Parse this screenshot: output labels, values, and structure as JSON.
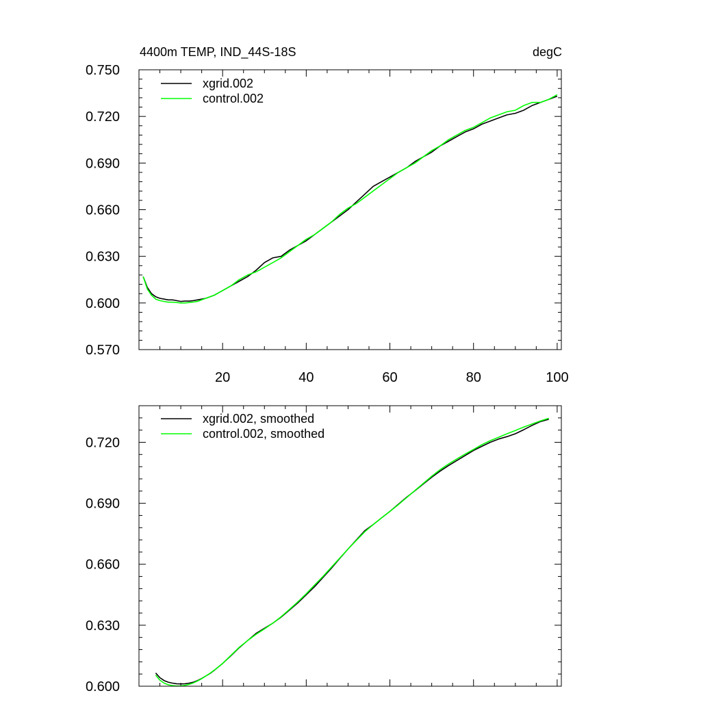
{
  "chart_data": [
    {
      "type": "line",
      "title_left": "4400m TEMP, IND_44S-18S",
      "title_right": "degC",
      "xlabel": "",
      "ylabel": "",
      "xlim": [
        0,
        101
      ],
      "ylim": [
        0.57,
        0.75
      ],
      "xticks": [
        20,
        40,
        60,
        80,
        100
      ],
      "xtick_labels": [
        "20",
        "40",
        "60",
        "80",
        "100"
      ],
      "yticks": [
        0.57,
        0.6,
        0.63,
        0.66,
        0.69,
        0.72,
        0.75
      ],
      "ytick_labels": [
        "0.570",
        "0.600",
        "0.630",
        "0.660",
        "0.690",
        "0.720",
        "0.750"
      ],
      "legend_position": "top-left",
      "series": [
        {
          "name": "xgrid.002",
          "color": "#000000",
          "x": [
            1,
            2,
            3,
            4,
            5,
            6,
            7,
            8,
            9,
            10,
            11,
            12,
            13,
            14,
            15,
            16,
            17,
            18,
            19,
            20,
            22,
            24,
            26,
            28,
            30,
            32,
            34,
            36,
            38,
            40,
            42,
            44,
            46,
            48,
            50,
            52,
            54,
            56,
            58,
            60,
            62,
            64,
            66,
            68,
            70,
            72,
            74,
            76,
            78,
            80,
            82,
            84,
            86,
            88,
            90,
            92,
            94,
            96,
            98,
            100
          ],
          "values": [
            0.617,
            0.61,
            0.606,
            0.604,
            0.603,
            0.6025,
            0.602,
            0.602,
            0.6015,
            0.601,
            0.6012,
            0.6012,
            0.6015,
            0.602,
            0.6025,
            0.603,
            0.604,
            0.605,
            0.6065,
            0.608,
            0.611,
            0.614,
            0.617,
            0.621,
            0.626,
            0.629,
            0.63,
            0.634,
            0.637,
            0.64,
            0.644,
            0.648,
            0.652,
            0.656,
            0.66,
            0.665,
            0.67,
            0.675,
            0.678,
            0.681,
            0.684,
            0.687,
            0.691,
            0.694,
            0.697,
            0.701,
            0.704,
            0.707,
            0.71,
            0.712,
            0.715,
            0.717,
            0.719,
            0.721,
            0.722,
            0.724,
            0.727,
            0.729,
            0.731,
            0.733
          ]
        },
        {
          "name": "control.002",
          "color": "#00ff00",
          "x": [
            1,
            2,
            3,
            4,
            5,
            6,
            7,
            8,
            9,
            10,
            11,
            12,
            13,
            14,
            15,
            16,
            17,
            18,
            19,
            20,
            22,
            24,
            26,
            28,
            30,
            32,
            34,
            36,
            38,
            40,
            42,
            44,
            46,
            48,
            50,
            52,
            54,
            56,
            58,
            60,
            62,
            64,
            66,
            68,
            70,
            72,
            74,
            76,
            78,
            80,
            82,
            84,
            86,
            88,
            90,
            92,
            94,
            96,
            98,
            100
          ],
          "values": [
            0.617,
            0.609,
            0.605,
            0.6025,
            0.6015,
            0.601,
            0.6005,
            0.6005,
            0.6003,
            0.6,
            0.6,
            0.6003,
            0.6006,
            0.601,
            0.602,
            0.603,
            0.604,
            0.605,
            0.6065,
            0.608,
            0.611,
            0.615,
            0.618,
            0.62,
            0.623,
            0.626,
            0.629,
            0.633,
            0.637,
            0.641,
            0.644,
            0.648,
            0.652,
            0.657,
            0.661,
            0.664,
            0.668,
            0.672,
            0.676,
            0.68,
            0.684,
            0.687,
            0.69,
            0.694,
            0.698,
            0.701,
            0.705,
            0.708,
            0.711,
            0.713,
            0.716,
            0.719,
            0.721,
            0.723,
            0.724,
            0.727,
            0.729,
            0.729,
            0.731,
            0.734
          ]
        }
      ]
    },
    {
      "type": "line",
      "title_left": "",
      "title_right": "",
      "xlabel": "",
      "ylabel": "",
      "xlim": [
        0,
        101
      ],
      "ylim": [
        0.6,
        0.738
      ],
      "xticks": [
        20,
        40,
        60,
        80,
        100
      ],
      "xtick_labels": [],
      "yticks": [
        0.6,
        0.63,
        0.66,
        0.69,
        0.72
      ],
      "ytick_labels": [
        "0.600",
        "0.630",
        "0.660",
        "0.690",
        "0.720"
      ],
      "legend_position": "top-left",
      "series": [
        {
          "name": "xgrid.002, smoothed",
          "color": "#000000",
          "x": [
            4,
            5,
            6,
            7,
            8,
            9,
            10,
            11,
            12,
            13,
            14,
            15,
            16,
            17,
            18,
            19,
            20,
            22,
            24,
            26,
            28,
            30,
            32,
            34,
            36,
            38,
            40,
            42,
            44,
            46,
            48,
            50,
            52,
            54,
            56,
            58,
            60,
            62,
            64,
            66,
            68,
            70,
            72,
            74,
            76,
            78,
            80,
            82,
            84,
            86,
            88,
            90,
            92,
            94,
            96,
            98
          ],
          "values": [
            0.6065,
            0.6042,
            0.6028,
            0.602,
            0.6015,
            0.6012,
            0.6011,
            0.6012,
            0.6015,
            0.602,
            0.6028,
            0.6038,
            0.605,
            0.6063,
            0.6078,
            0.6095,
            0.6112,
            0.615,
            0.619,
            0.6225,
            0.626,
            0.6285,
            0.631,
            0.634,
            0.6375,
            0.641,
            0.645,
            0.649,
            0.6535,
            0.658,
            0.6628,
            0.6675,
            0.672,
            0.6765,
            0.6795,
            0.6828,
            0.686,
            0.6895,
            0.693,
            0.6962,
            0.6995,
            0.7028,
            0.7058,
            0.7085,
            0.711,
            0.7135,
            0.716,
            0.718,
            0.72,
            0.7216,
            0.7228,
            0.7242,
            0.7262,
            0.7283,
            0.7302,
            0.7313
          ]
        },
        {
          "name": "control.002, smoothed",
          "color": "#00ff00",
          "x": [
            4,
            5,
            6,
            7,
            8,
            9,
            10,
            11,
            12,
            13,
            14,
            15,
            16,
            17,
            18,
            19,
            20,
            22,
            24,
            26,
            28,
            30,
            32,
            34,
            36,
            38,
            40,
            42,
            44,
            46,
            48,
            50,
            52,
            54,
            56,
            58,
            60,
            62,
            64,
            66,
            68,
            70,
            72,
            74,
            76,
            78,
            80,
            82,
            84,
            86,
            88,
            90,
            92,
            94,
            96,
            98
          ],
          "values": [
            0.6055,
            0.603,
            0.6015,
            0.6007,
            0.6003,
            0.6001,
            0.6001,
            0.6004,
            0.6009,
            0.6016,
            0.6026,
            0.6037,
            0.605,
            0.6064,
            0.6079,
            0.6095,
            0.6112,
            0.6152,
            0.6192,
            0.6225,
            0.6255,
            0.6282,
            0.631,
            0.6342,
            0.6378,
            0.6415,
            0.6455,
            0.6498,
            0.654,
            0.6585,
            0.663,
            0.6675,
            0.6718,
            0.676,
            0.6795,
            0.6828,
            0.686,
            0.6893,
            0.6928,
            0.6963,
            0.6998,
            0.7033,
            0.7065,
            0.7093,
            0.7118,
            0.7142,
            0.7165,
            0.7188,
            0.7208,
            0.7225,
            0.7242,
            0.7258,
            0.7275,
            0.729,
            0.7305,
            0.7318
          ]
        }
      ]
    }
  ]
}
